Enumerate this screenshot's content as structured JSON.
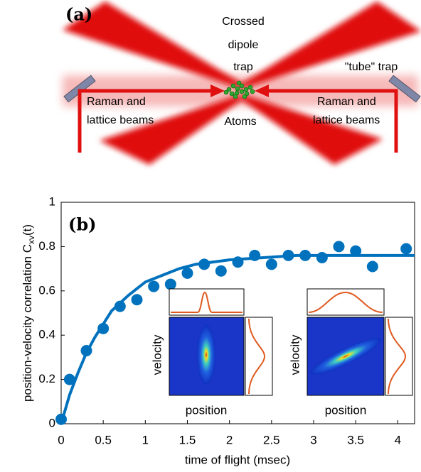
{
  "diagram": {
    "panel_label": "(a)",
    "labels": [
      "Crossed",
      "dipole",
      "trap",
      "\"tube\" trap",
      "Raman and",
      "lattice beams",
      "Raman and",
      "lattice beams",
      "Atoms"
    ]
  },
  "chart_data": {
    "type": "scatter",
    "panel_label": "(b)",
    "x_label": "time of flight (msec)",
    "y_label": "position-velocity correlation C",
    "y_label_subscript": "xv",
    "y_label_suffix": "(t)",
    "xlim": [
      0,
      4.2
    ],
    "ylim": [
      0,
      1
    ],
    "xticks": [
      0,
      0.5,
      1,
      1.5,
      2,
      2.5,
      3,
      3.5,
      4
    ],
    "yticks": [
      0,
      0.2,
      0.4,
      0.6,
      0.8,
      1
    ],
    "series": [
      {
        "type": "scatter",
        "color": "#0072bd",
        "x": [
          0,
          0.1,
          0.3,
          0.5,
          0.7,
          0.9,
          1.1,
          1.3,
          1.5,
          1.7,
          1.9,
          2.1,
          2.3,
          2.5,
          2.7,
          2.9,
          3.1,
          3.3,
          3.5,
          3.7,
          4.1
        ],
        "values": [
          0.02,
          0.2,
          0.33,
          0.43,
          0.53,
          0.56,
          0.62,
          0.63,
          0.68,
          0.72,
          0.69,
          0.73,
          0.76,
          0.72,
          0.76,
          0.76,
          0.75,
          0.8,
          0.78,
          0.71,
          0.79
        ]
      },
      {
        "type": "line",
        "color": "#0072bd",
        "x": [
          0,
          0.1,
          0.2,
          0.3,
          0.4,
          0.5,
          0.6,
          0.8,
          1,
          1.2,
          1.4,
          1.6,
          1.8,
          2,
          2.4,
          2.8,
          3.2,
          3.6,
          4,
          4.2
        ],
        "values": [
          0,
          0.13,
          0.23,
          0.32,
          0.39,
          0.45,
          0.51,
          0.58,
          0.64,
          0.67,
          0.7,
          0.72,
          0.73,
          0.74,
          0.75,
          0.76,
          0.76,
          0.76,
          0.76,
          0.76
        ]
      }
    ],
    "insets": [
      {
        "x_label": "position",
        "y_label": "velocity"
      },
      {
        "x_label": "position",
        "y_label": "velocity"
      }
    ]
  }
}
